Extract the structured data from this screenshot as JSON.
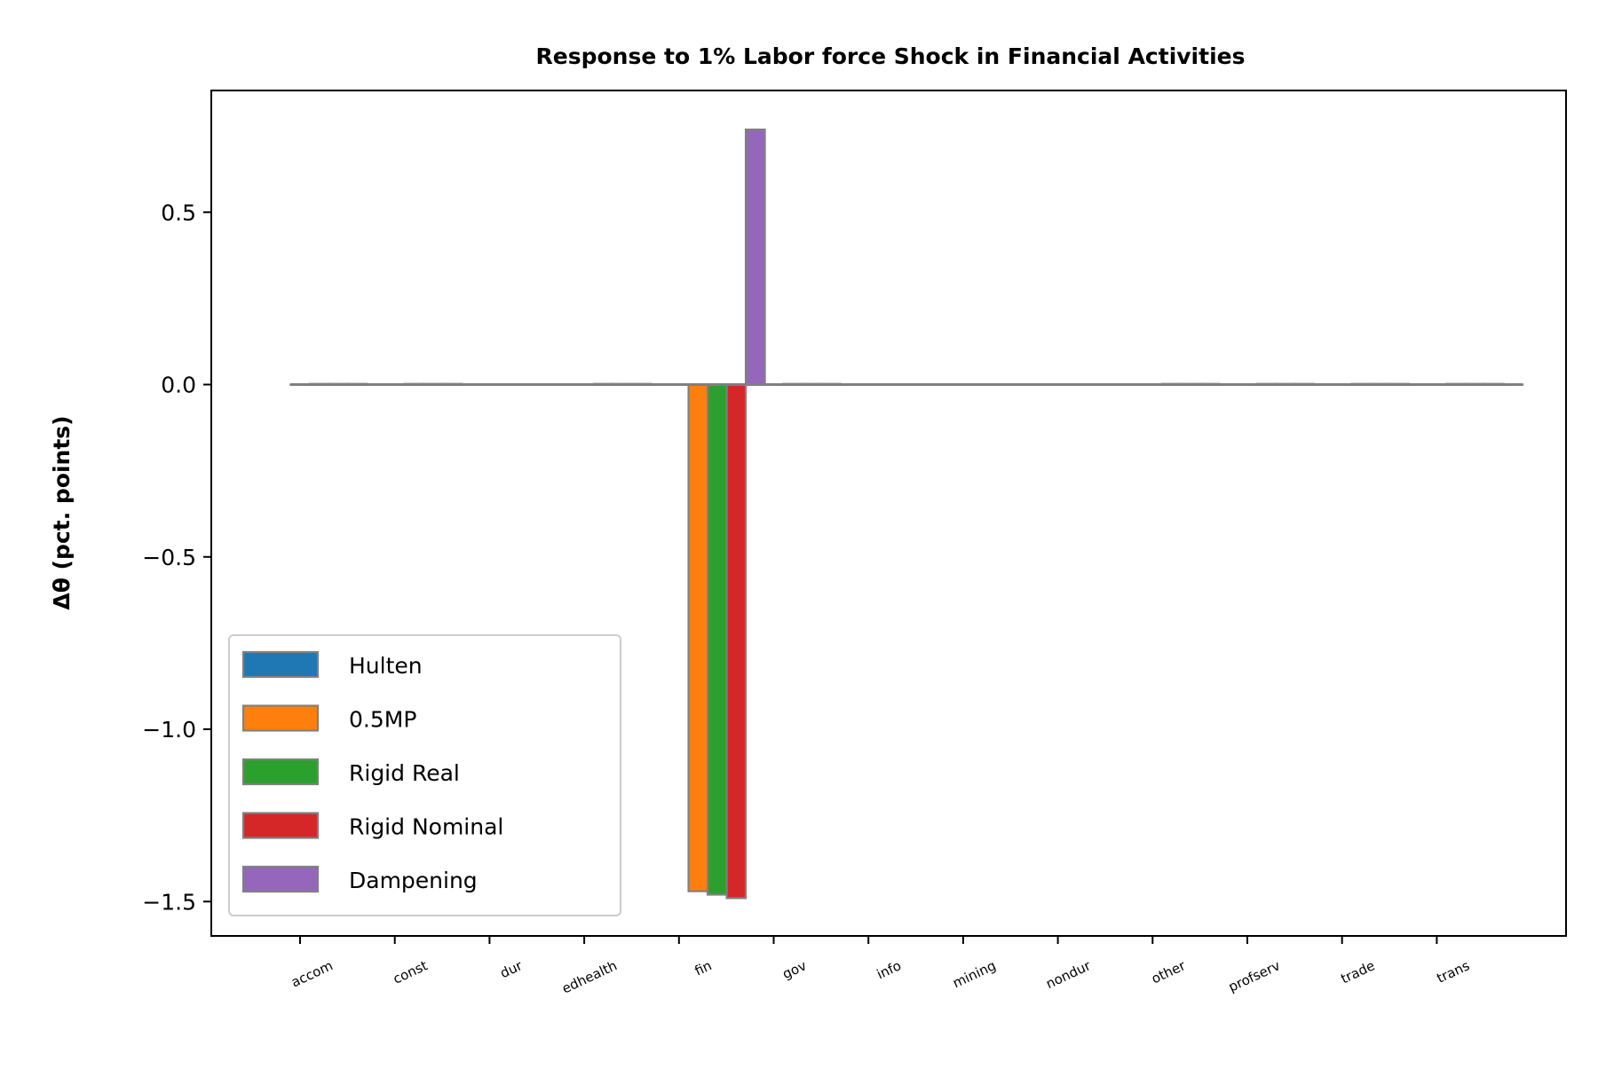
{
  "chart_data": {
    "type": "bar",
    "title": "Response to 1% Labor force Shock in Financial Activities",
    "xlabel": "",
    "ylabel": "Δθ  (pct. points)",
    "ylim": [
      -1.6,
      0.8
    ],
    "yticks": [
      0.5,
      0.0,
      -0.5,
      -1.0,
      -1.5
    ],
    "ytick_labels": [
      "0.5",
      "0.0",
      "−0.5",
      "−1.0",
      "−1.5"
    ],
    "grid": false,
    "legend_position": "lower-left",
    "categories": [
      "accom",
      "const",
      "dur",
      "edhealth",
      "fin",
      "gov",
      "info",
      "mining",
      "nondur",
      "other",
      "profserv",
      "trade",
      "trans"
    ],
    "series": [
      {
        "name": "Hulten",
        "color": "#1f77b4",
        "values": [
          0,
          0,
          0,
          0,
          0,
          0,
          0,
          0,
          0,
          0,
          0,
          0,
          0
        ]
      },
      {
        "name": "0.5MP",
        "color": "#ff7f0e",
        "values": [
          0.002,
          0.002,
          0,
          0.002,
          -1.47,
          0.002,
          0,
          0,
          0,
          0.002,
          0.002,
          0.002,
          0.002
        ]
      },
      {
        "name": "Rigid Real",
        "color": "#2ca02c",
        "values": [
          0.002,
          0.002,
          0,
          0.002,
          -1.48,
          0.002,
          0,
          0,
          0,
          0.002,
          0.002,
          0.002,
          0.002
        ]
      },
      {
        "name": "Rigid Nominal",
        "color": "#d62728",
        "values": [
          0.002,
          0.002,
          0,
          0.002,
          -1.49,
          0.002,
          0,
          0,
          0,
          0.002,
          0.002,
          0.002,
          0.002
        ]
      },
      {
        "name": "Dampening",
        "color": "#9467bd",
        "values": [
          0,
          0,
          0,
          0,
          0.74,
          0,
          0,
          0,
          0,
          0,
          0,
          0,
          0
        ]
      }
    ],
    "bar_edge_color": "#808080"
  }
}
